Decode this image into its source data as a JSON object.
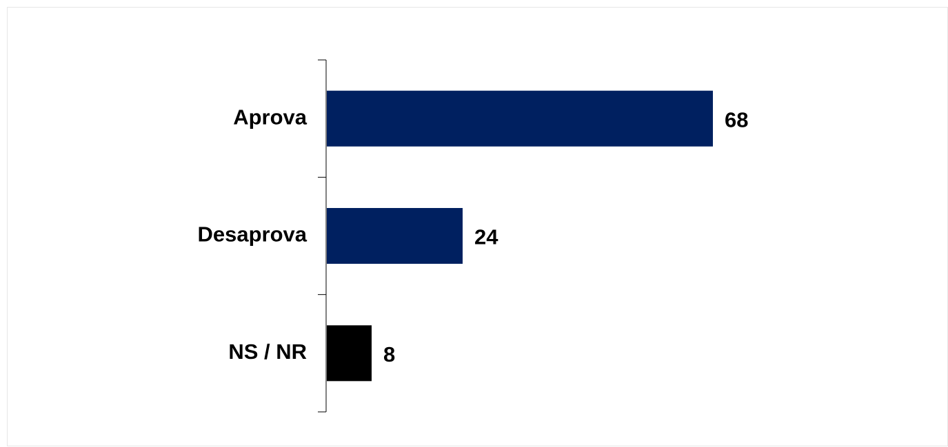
{
  "chart_data": {
    "type": "bar",
    "orientation": "horizontal",
    "categories": [
      "Aprova",
      "Desaprova",
      "NS / NR"
    ],
    "values": [
      68,
      24,
      8
    ],
    "colors": [
      "#002060",
      "#002060",
      "#000000"
    ]
  }
}
